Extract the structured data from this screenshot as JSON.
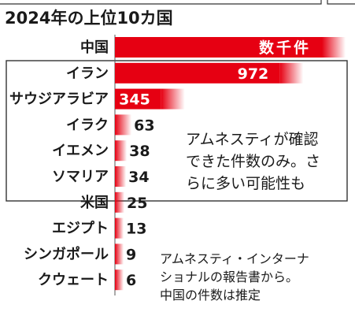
{
  "chart_data": {
    "type": "bar",
    "orientation": "horizontal",
    "title": "2024年の上位10カ国",
    "categories": [
      "中国",
      "イラン",
      "サウジアラビア",
      "イラク",
      "イエメン",
      "ソマリア",
      "米国",
      "エジプト",
      "シンガポール",
      "クウェート"
    ],
    "values": [
      null,
      972,
      345,
      63,
      38,
      34,
      25,
      13,
      9,
      6
    ],
    "value_labels": [
      "数千件",
      "972",
      "345",
      "63",
      "38",
      "34",
      "25",
      "13",
      "9",
      "6"
    ],
    "bar_color": "#e60012",
    "boxed_note": "アムネスティが確認できた件数のみ。さらに多い可能性も",
    "boxed_note_lines": [
      "アムネスティが確認",
      "できた件数のみ。さ",
      "らに多い可能性も"
    ],
    "source_note_lines": [
      "アムネスティ・インターナ",
      "ショナルの報告書から。",
      "中国の件数は推定"
    ]
  }
}
